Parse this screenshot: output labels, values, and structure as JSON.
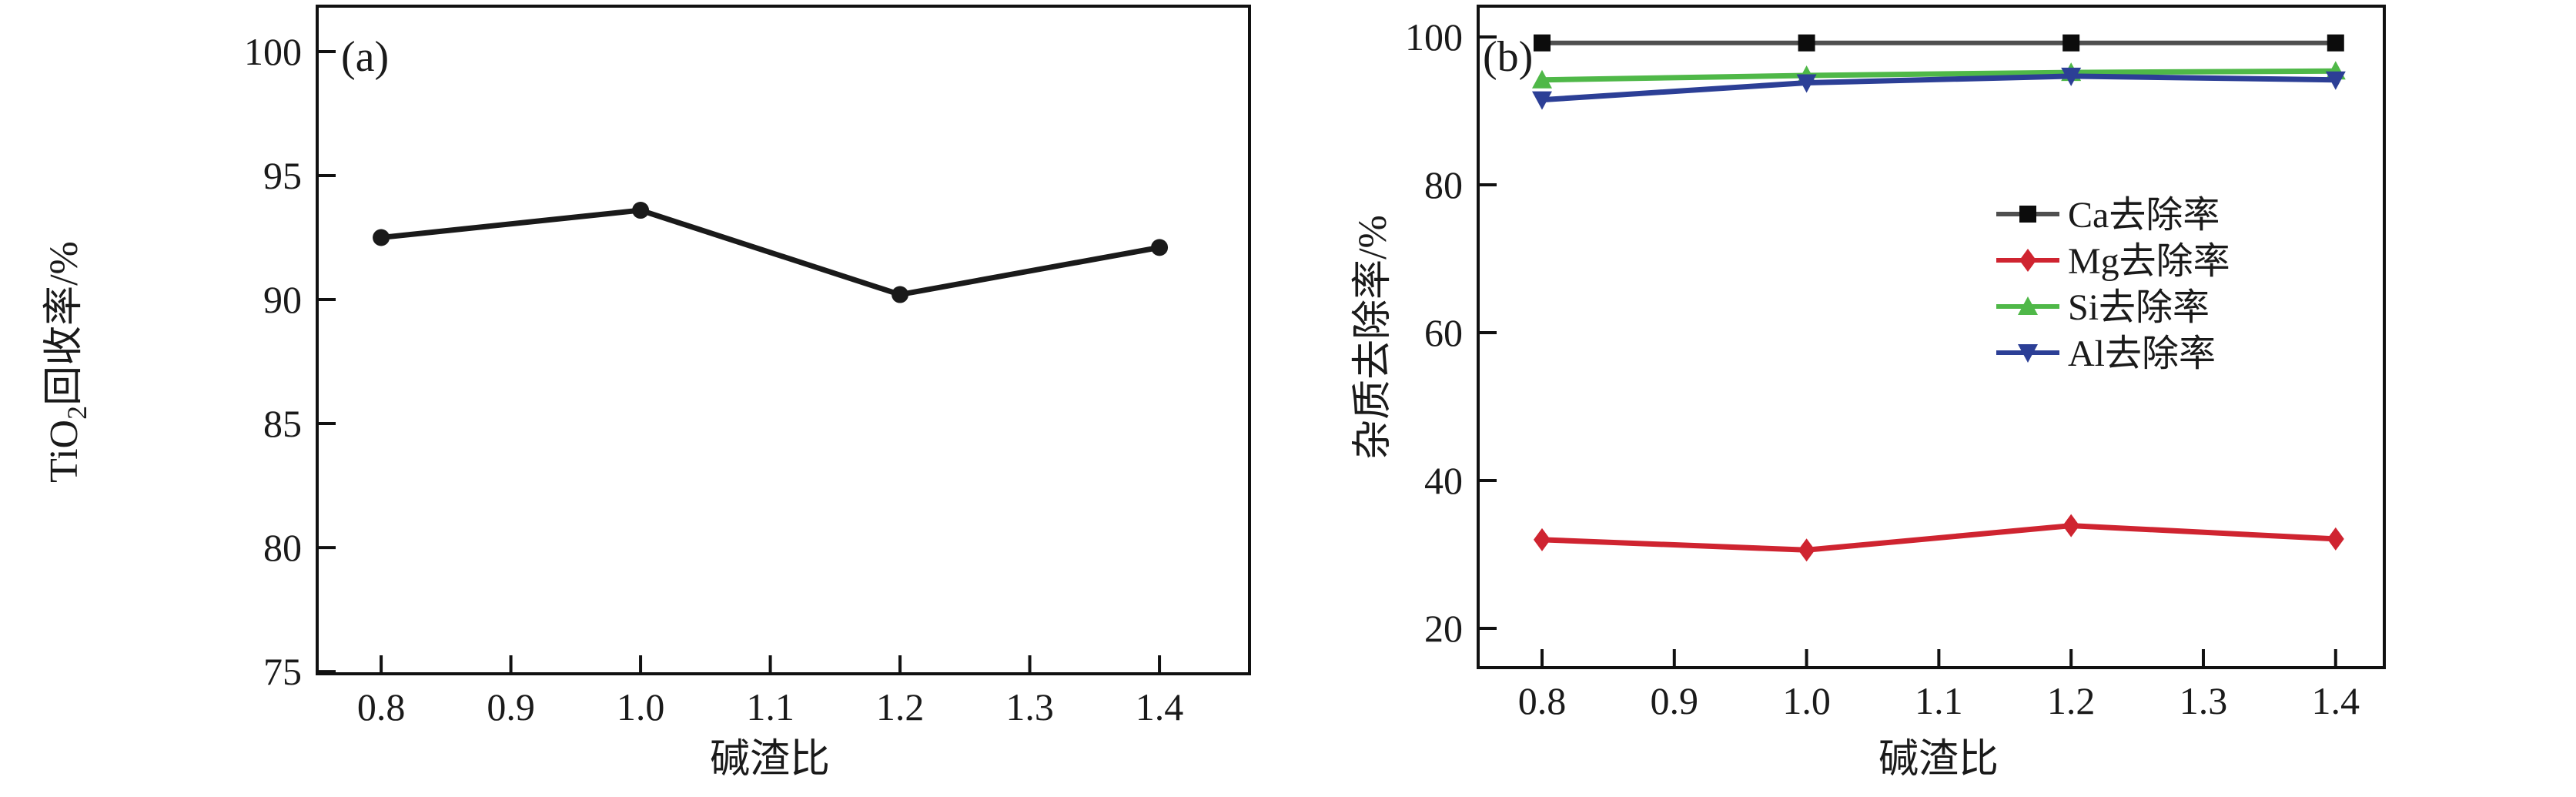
{
  "figure": {
    "background": "#ffffff",
    "text_color": "#1a1a1a",
    "axis_color": "#111111",
    "panel_labels": [
      "(a)",
      "(b)"
    ]
  },
  "chart_data": [
    {
      "type": "line",
      "panel_label": "(a)",
      "title": "",
      "xlabel": "碱渣比",
      "ylabel": "TiO2回收率/%",
      "ylabel_rich": [
        {
          "text": "TiO",
          "subscript": false
        },
        {
          "text": "2",
          "subscript": true
        },
        {
          "text": "回收率/%",
          "subscript": false
        }
      ],
      "x": [
        0.8,
        1.0,
        1.2,
        1.4
      ],
      "xticks": [
        "0.8",
        "0.9",
        "1.0",
        "1.1",
        "1.2",
        "1.3",
        "1.4"
      ],
      "xtick_values": [
        0.8,
        0.9,
        1.0,
        1.1,
        1.2,
        1.3,
        1.4
      ],
      "yticks": [
        "75",
        "80",
        "85",
        "90",
        "95",
        "100"
      ],
      "ytick_values": [
        75,
        80,
        85,
        90,
        95,
        100
      ],
      "xlim": [
        0.7507,
        1.4694
      ],
      "ylim": [
        74.91,
        101.83
      ],
      "grid": false,
      "legend": null,
      "series": [
        {
          "name": "TiO2回收率",
          "color": "#1a1a1a",
          "marker": "circle",
          "values": [
            92.5,
            93.6,
            90.2,
            92.1
          ]
        }
      ]
    },
    {
      "type": "line",
      "panel_label": "(b)",
      "title": "",
      "xlabel": "碱渣比",
      "ylabel": "杂质去除率/%",
      "ylabel_rich": [
        {
          "text": "杂质去除率/%",
          "subscript": false
        }
      ],
      "x": [
        0.8,
        1.0,
        1.2,
        1.4
      ],
      "xticks": [
        "0.8",
        "0.9",
        "1.0",
        "1.1",
        "1.2",
        "1.3",
        "1.4"
      ],
      "xtick_values": [
        0.8,
        0.9,
        1.0,
        1.1,
        1.2,
        1.3,
        1.4
      ],
      "yticks": [
        "20",
        "40",
        "60",
        "80",
        "100"
      ],
      "ytick_values": [
        20,
        40,
        60,
        80,
        100
      ],
      "xlim": [
        0.7517,
        1.4368
      ],
      "ylim": [
        14.69,
        104.17
      ],
      "grid": false,
      "legend": {
        "position": "middle-right",
        "entries": [
          "Ca去除率",
          "Mg去除率",
          "Si去除率",
          "Al去除率"
        ]
      },
      "series": [
        {
          "name": "Ca去除率",
          "color": "#4f4f4f",
          "marker_color": "#0c0c0c",
          "marker": "square",
          "values": [
            99.2,
            99.2,
            99.2,
            99.2
          ]
        },
        {
          "name": "Mg去除率",
          "color": "#cf2430",
          "marker_color": "#cf2430",
          "marker": "diamond",
          "values": [
            32.0,
            30.6,
            33.9,
            32.1
          ]
        },
        {
          "name": "Si去除率",
          "color": "#4fb848",
          "marker_color": "#4fb848",
          "marker": "triangle-up",
          "values": [
            94.2,
            94.8,
            95.2,
            95.4
          ]
        },
        {
          "name": "Al去除率",
          "color": "#2c3f96",
          "marker_color": "#2c3f96",
          "marker": "triangle-down",
          "values": [
            91.5,
            93.8,
            94.7,
            94.2
          ]
        }
      ]
    }
  ]
}
